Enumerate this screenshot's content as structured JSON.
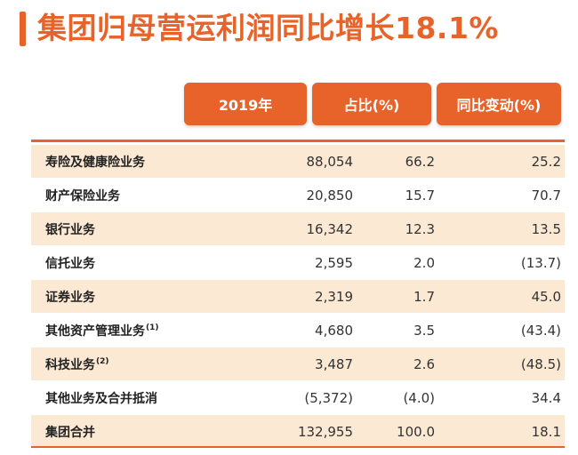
{
  "title": "集团归母营运利润同比增长18.1%",
  "headers": [
    "2019年",
    "占比(%)",
    "同比变动(%)"
  ],
  "rows": [
    {
      "label": "寿险及健康险业务",
      "sup": "",
      "amount": "88,054",
      "share": "66.2",
      "change": "25.2"
    },
    {
      "label": "财产保险业务",
      "sup": "",
      "amount": "20,850",
      "share": "15.7",
      "change": "70.7"
    },
    {
      "label": "银行业务",
      "sup": "",
      "amount": "16,342",
      "share": "12.3",
      "change": "13.5"
    },
    {
      "label": "信托业务",
      "sup": "",
      "amount": "2,595",
      "share": "2.0",
      "change": "(13.7)"
    },
    {
      "label": "证券业务",
      "sup": "",
      "amount": "2,319",
      "share": "1.7",
      "change": "45.0"
    },
    {
      "label": "其他资产管理业务",
      "sup": "(1)",
      "amount": "4,680",
      "share": "3.5",
      "change": "(43.4)"
    },
    {
      "label": "科技业务",
      "sup": "(2)",
      "amount": "3,487",
      "share": "2.6",
      "change": "(48.5)"
    },
    {
      "label": "其他业务及合并抵消",
      "sup": "",
      "amount": "(5,372)",
      "share": "(4.0)",
      "change": "34.4"
    },
    {
      "label": "集团合并",
      "sup": "",
      "amount": "132,955",
      "share": "100.0",
      "change": "18.1"
    }
  ],
  "colors": {
    "accent": "#e8632a",
    "row_shade": "#fbe9d4"
  }
}
